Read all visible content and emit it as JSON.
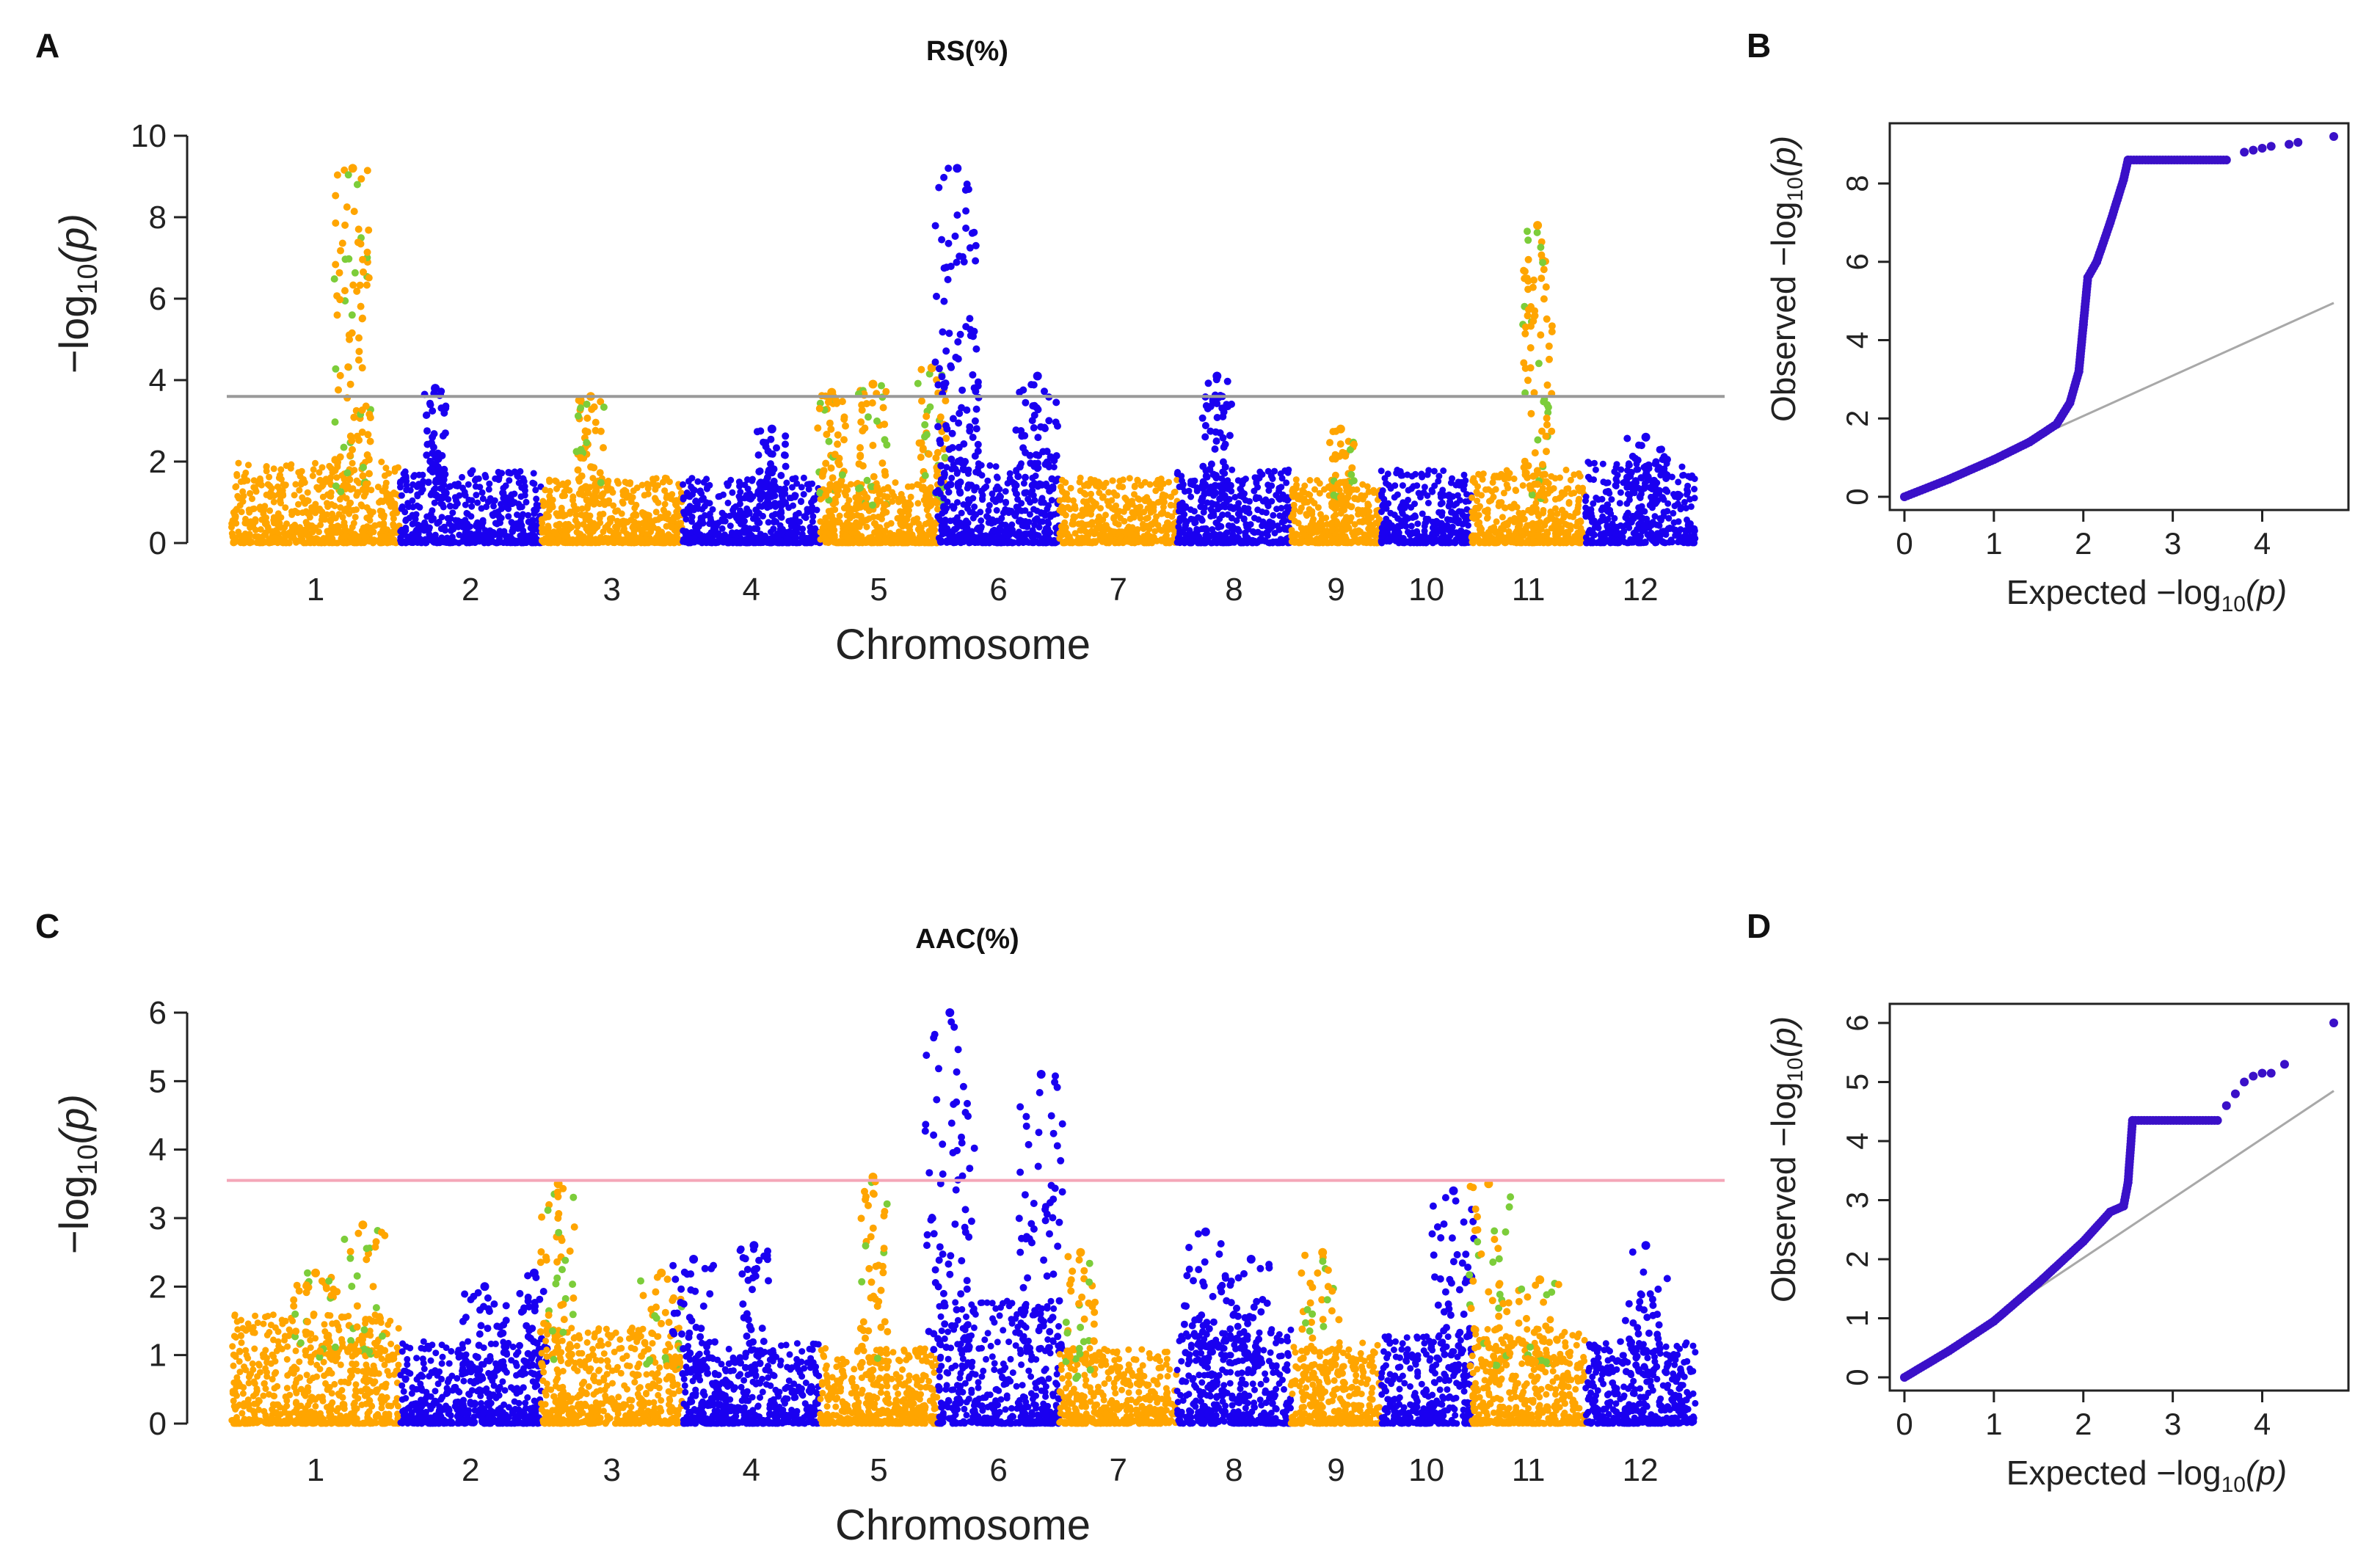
{
  "figure": {
    "panel_labels": [
      "A",
      "B",
      "C",
      "D"
    ]
  },
  "colors": {
    "orange": "#FFA500",
    "blue": "#1A00F0",
    "green": "#7CCD3A",
    "threshold_gray": "#9A9A9A",
    "threshold_pink": "#F4A6B8",
    "qq_point": "#3A10C8",
    "qq_line": "#A8A8A8",
    "axis": "#222222"
  },
  "chart_data": [
    {
      "panel": "A",
      "type": "scatter",
      "subtype": "manhattan",
      "title": "RS(%)",
      "xlabel": "Chromosome",
      "ylabel_main": "−log",
      "ylabel_sub": "10",
      "ylabel_tail": "(p)",
      "ylim": [
        0,
        10
      ],
      "yticks": [
        0,
        2,
        4,
        6,
        8,
        10
      ],
      "threshold": 3.6,
      "threshold_color": "gray",
      "chromosomes": [
        "1",
        "2",
        "3",
        "4",
        "5",
        "6",
        "7",
        "8",
        "9",
        "10",
        "11",
        "12"
      ],
      "chrom_sizes": [
        43,
        36,
        36,
        35,
        30,
        31,
        30,
        29,
        23,
        23,
        29,
        28
      ],
      "baseline_max": [
        2.0,
        1.8,
        1.6,
        1.6,
        1.5,
        2.0,
        1.6,
        1.8,
        1.6,
        1.8,
        1.8,
        2.0
      ],
      "peaks": [
        {
          "chrom": 1,
          "pos": 0.72,
          "max": 9.2,
          "width": 0.025
        },
        {
          "chrom": 2,
          "pos": 0.25,
          "max": 3.8,
          "width": 0.015
        },
        {
          "chrom": 3,
          "pos": 0.35,
          "max": 3.6,
          "width": 0.02
        },
        {
          "chrom": 4,
          "pos": 0.65,
          "max": 2.8,
          "width": 0.02
        },
        {
          "chrom": 5,
          "pos": 0.1,
          "max": 3.7,
          "width": 0.02
        },
        {
          "chrom": 5,
          "pos": 0.45,
          "max": 3.9,
          "width": 0.02
        },
        {
          "chrom": 5,
          "pos": 0.95,
          "max": 4.3,
          "width": 0.02
        },
        {
          "chrom": 6,
          "pos": 0.16,
          "max": 9.2,
          "width": 0.03
        },
        {
          "chrom": 6,
          "pos": 0.82,
          "max": 4.1,
          "width": 0.03
        },
        {
          "chrom": 8,
          "pos": 0.35,
          "max": 4.1,
          "width": 0.02
        },
        {
          "chrom": 9,
          "pos": 0.55,
          "max": 2.8,
          "width": 0.02
        },
        {
          "chrom": 11,
          "pos": 0.58,
          "max": 7.8,
          "width": 0.02
        },
        {
          "chrom": 12,
          "pos": 0.55,
          "max": 2.6,
          "width": 0.03
        }
      ]
    },
    {
      "panel": "B",
      "type": "scatter",
      "subtype": "qq",
      "xlabel_main": "Expected  −log",
      "xlabel_sub": "10",
      "xlabel_tail": "(p)",
      "ylabel_main": "Observed  −log",
      "ylabel_sub": "10",
      "ylabel_tail": "(p)",
      "xlim": [
        0,
        4.8
      ],
      "ylim": [
        0,
        9.2
      ],
      "xticks": [
        0,
        1,
        2,
        3,
        4
      ],
      "yticks": [
        0,
        2,
        4,
        6,
        8
      ],
      "reference_line": [
        [
          0,
          0
        ],
        [
          4.8,
          4.95
        ]
      ],
      "curve": [
        [
          0,
          0
        ],
        [
          0.5,
          0.45
        ],
        [
          1.0,
          0.95
        ],
        [
          1.4,
          1.4
        ],
        [
          1.7,
          1.85
        ],
        [
          1.85,
          2.4
        ],
        [
          1.95,
          3.2
        ],
        [
          2.0,
          4.4
        ],
        [
          2.05,
          5.6
        ],
        [
          2.15,
          6.0
        ],
        [
          2.3,
          7.0
        ],
        [
          2.45,
          8.1
        ],
        [
          2.5,
          8.6
        ],
        [
          3.6,
          8.6
        ]
      ],
      "outliers": [
        [
          3.8,
          8.8
        ],
        [
          3.9,
          8.85
        ],
        [
          4.0,
          8.9
        ],
        [
          4.1,
          8.95
        ],
        [
          4.3,
          9.0
        ],
        [
          4.4,
          9.05
        ],
        [
          4.8,
          9.2
        ]
      ]
    },
    {
      "panel": "C",
      "type": "scatter",
      "subtype": "manhattan",
      "title": "AAC(%)",
      "xlabel": "Chromosome",
      "ylabel_main": "−log",
      "ylabel_sub": "10",
      "ylabel_tail": "(p)",
      "ylim": [
        0,
        6
      ],
      "yticks": [
        0,
        1,
        2,
        3,
        4,
        5,
        6
      ],
      "threshold": 3.55,
      "threshold_color": "pink",
      "chromosomes": [
        "1",
        "2",
        "3",
        "4",
        "5",
        "6",
        "7",
        "8",
        "9",
        "10",
        "11",
        "12"
      ],
      "chrom_sizes": [
        43,
        36,
        36,
        35,
        30,
        31,
        30,
        29,
        23,
        23,
        29,
        28
      ],
      "baseline_max": [
        1.6,
        1.2,
        1.4,
        1.2,
        1.1,
        1.8,
        1.1,
        1.4,
        1.2,
        1.3,
        1.4,
        1.2
      ],
      "peaks": [
        {
          "chrom": 1,
          "pos": 0.78,
          "max": 2.9,
          "width": 0.03
        },
        {
          "chrom": 1,
          "pos": 0.5,
          "max": 2.2,
          "width": 0.03
        },
        {
          "chrom": 2,
          "pos": 0.6,
          "max": 2.0,
          "width": 0.03
        },
        {
          "chrom": 2,
          "pos": 0.95,
          "max": 2.2,
          "width": 0.02
        },
        {
          "chrom": 3,
          "pos": 0.12,
          "max": 3.5,
          "width": 0.025
        },
        {
          "chrom": 3,
          "pos": 0.85,
          "max": 2.2,
          "width": 0.03
        },
        {
          "chrom": 4,
          "pos": 0.08,
          "max": 2.4,
          "width": 0.03
        },
        {
          "chrom": 4,
          "pos": 0.52,
          "max": 2.6,
          "width": 0.02
        },
        {
          "chrom": 5,
          "pos": 0.45,
          "max": 3.6,
          "width": 0.02
        },
        {
          "chrom": 6,
          "pos": 0.1,
          "max": 6.0,
          "width": 0.035
        },
        {
          "chrom": 6,
          "pos": 0.85,
          "max": 5.1,
          "width": 0.03
        },
        {
          "chrom": 7,
          "pos": 0.18,
          "max": 2.5,
          "width": 0.02
        },
        {
          "chrom": 8,
          "pos": 0.25,
          "max": 2.8,
          "width": 0.03
        },
        {
          "chrom": 8,
          "pos": 0.65,
          "max": 2.4,
          "width": 0.03
        },
        {
          "chrom": 9,
          "pos": 0.35,
          "max": 2.5,
          "width": 0.03
        },
        {
          "chrom": 10,
          "pos": 0.8,
          "max": 3.4,
          "width": 0.03
        },
        {
          "chrom": 11,
          "pos": 0.15,
          "max": 3.5,
          "width": 0.03
        },
        {
          "chrom": 11,
          "pos": 0.6,
          "max": 2.1,
          "width": 0.03
        },
        {
          "chrom": 12,
          "pos": 0.55,
          "max": 2.6,
          "width": 0.03
        }
      ]
    },
    {
      "panel": "D",
      "type": "scatter",
      "subtype": "qq",
      "xlabel_main": "Expected  −log",
      "xlabel_sub": "10",
      "xlabel_tail": "(p)",
      "ylabel_main": "Observed  −log",
      "ylabel_sub": "10",
      "ylabel_tail": "(p)",
      "xlim": [
        0,
        4.8
      ],
      "ylim": [
        0,
        6.1
      ],
      "xticks": [
        0,
        1,
        2,
        3,
        4
      ],
      "yticks": [
        0,
        1,
        2,
        3,
        4,
        5,
        6
      ],
      "reference_line": [
        [
          0,
          0
        ],
        [
          4.8,
          4.85
        ]
      ],
      "curve": [
        [
          0,
          0
        ],
        [
          0.5,
          0.45
        ],
        [
          1.0,
          0.95
        ],
        [
          1.5,
          1.6
        ],
        [
          2.0,
          2.3
        ],
        [
          2.3,
          2.8
        ],
        [
          2.45,
          2.9
        ],
        [
          2.5,
          3.3
        ],
        [
          2.55,
          4.35
        ],
        [
          3.5,
          4.35
        ]
      ],
      "outliers": [
        [
          3.6,
          4.6
        ],
        [
          3.7,
          4.8
        ],
        [
          3.8,
          5.0
        ],
        [
          3.9,
          5.1
        ],
        [
          4.0,
          5.15
        ],
        [
          4.1,
          5.15
        ],
        [
          4.25,
          5.3
        ],
        [
          4.8,
          6.0
        ]
      ]
    }
  ]
}
